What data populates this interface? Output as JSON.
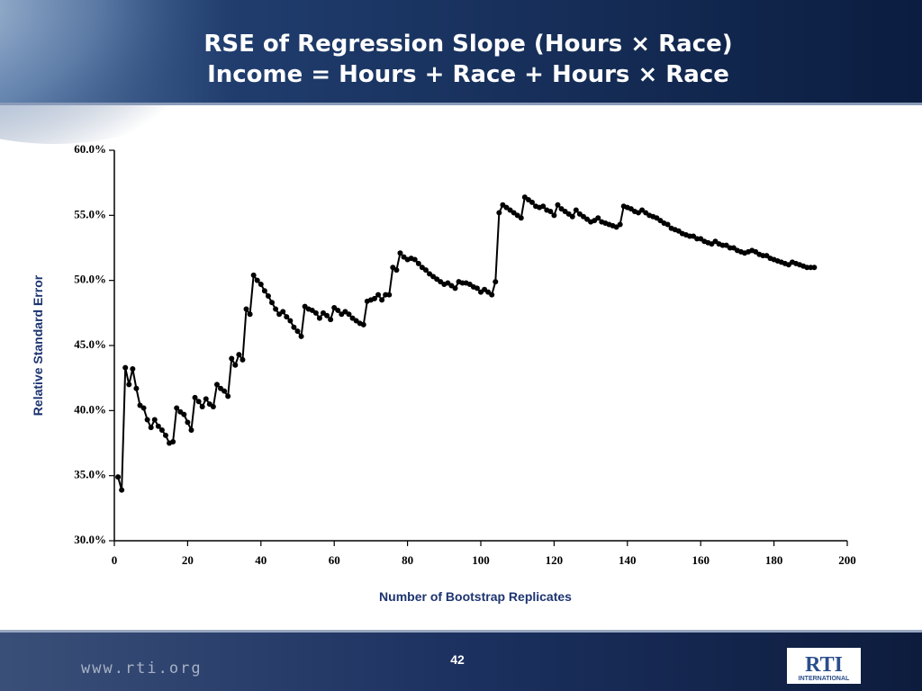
{
  "chart_data": {
    "type": "line",
    "title": "RSE of Regression Slope (Hours × Race)",
    "subtitle": "Income = Hours + Race + Hours × Race",
    "x_label": "Number of Bootstrap Replicates",
    "y_label": "Relative Standard Error",
    "color": "#000000",
    "x": [
      1,
      2,
      3,
      4,
      5,
      6,
      7,
      8,
      9,
      10,
      11,
      12,
      13,
      14,
      15,
      16,
      17,
      18,
      19,
      20,
      21,
      22,
      23,
      24,
      25,
      26,
      27,
      28,
      29,
      30,
      31,
      32,
      33,
      34,
      35,
      36,
      37,
      38,
      39,
      40,
      41,
      42,
      43,
      44,
      45,
      46,
      47,
      48,
      49,
      50,
      51,
      52,
      53,
      54,
      55,
      56,
      57,
      58,
      59,
      60,
      61,
      62,
      63,
      64,
      65,
      66,
      67,
      68,
      69,
      70,
      71,
      72,
      73,
      74,
      75,
      76,
      77,
      78,
      79,
      80,
      81,
      82,
      83,
      84,
      85,
      86,
      87,
      88,
      89,
      90,
      91,
      92,
      93,
      94,
      95,
      96,
      97,
      98,
      99,
      100,
      101,
      102,
      103,
      104,
      105,
      106,
      107,
      108,
      109,
      110,
      111,
      112,
      113,
      114,
      115,
      116,
      117,
      118,
      119,
      120,
      121,
      122,
      123,
      124,
      125,
      126,
      127,
      128,
      129,
      130,
      131,
      132,
      133,
      134,
      135,
      136,
      137,
      138,
      139,
      140,
      141,
      142,
      143,
      144,
      145,
      146,
      147,
      148,
      149,
      150,
      151,
      152,
      153,
      154,
      155,
      156,
      157,
      158,
      159,
      160,
      161,
      162,
      163,
      164,
      165,
      166,
      167,
      168,
      169,
      170,
      171,
      172,
      173,
      174,
      175,
      176,
      177,
      178,
      179,
      180,
      181,
      182,
      183,
      184,
      185,
      186,
      187,
      188,
      189,
      190,
      191
    ],
    "values": [
      34.9,
      33.9,
      43.3,
      42.0,
      43.2,
      41.7,
      40.4,
      40.2,
      39.3,
      38.7,
      39.3,
      38.8,
      38.5,
      38.1,
      37.5,
      37.6,
      40.2,
      39.9,
      39.7,
      39.1,
      38.5,
      41.0,
      40.7,
      40.3,
      40.9,
      40.5,
      40.3,
      42.0,
      41.7,
      41.5,
      41.1,
      44.0,
      43.5,
      44.3,
      43.9,
      47.8,
      47.4,
      50.4,
      50.0,
      49.7,
      49.2,
      48.8,
      48.3,
      47.8,
      47.4,
      47.6,
      47.2,
      46.9,
      46.4,
      46.1,
      45.7,
      48.0,
      47.8,
      47.7,
      47.5,
      47.1,
      47.5,
      47.3,
      47.0,
      47.9,
      47.7,
      47.4,
      47.6,
      47.4,
      47.1,
      46.9,
      46.7,
      46.6,
      48.4,
      48.5,
      48.6,
      48.9,
      48.5,
      48.9,
      48.9,
      51.0,
      50.8,
      52.1,
      51.8,
      51.6,
      51.7,
      51.6,
      51.3,
      51.0,
      50.8,
      50.5,
      50.3,
      50.1,
      49.9,
      49.7,
      49.8,
      49.6,
      49.4,
      49.9,
      49.8,
      49.8,
      49.7,
      49.5,
      49.4,
      49.1,
      49.3,
      49.1,
      48.9,
      49.9,
      55.2,
      55.8,
      55.6,
      55.4,
      55.2,
      55.0,
      54.8,
      56.4,
      56.2,
      56.0,
      55.7,
      55.6,
      55.7,
      55.4,
      55.3,
      55.0,
      55.8,
      55.5,
      55.3,
      55.1,
      54.9,
      55.4,
      55.1,
      54.9,
      54.7,
      54.5,
      54.6,
      54.8,
      54.5,
      54.4,
      54.3,
      54.2,
      54.1,
      54.3,
      55.7,
      55.6,
      55.5,
      55.3,
      55.2,
      55.4,
      55.2,
      55.0,
      54.9,
      54.8,
      54.6,
      54.4,
      54.3,
      54.0,
      53.9,
      53.8,
      53.6,
      53.5,
      53.4,
      53.4,
      53.2,
      53.2,
      53.0,
      52.9,
      52.8,
      53.0,
      52.8,
      52.7,
      52.7,
      52.5,
      52.5,
      52.3,
      52.2,
      52.1,
      52.2,
      52.3,
      52.2,
      52.0,
      51.9,
      51.9,
      51.7,
      51.6,
      51.5,
      51.4,
      51.3,
      51.2,
      51.4,
      51.3,
      51.2,
      51.1,
      51.0,
      51.0,
      51.0
    ],
    "xlim": [
      0,
      200
    ],
    "xticks": [
      0,
      20,
      40,
      60,
      80,
      100,
      120,
      140,
      160,
      180,
      200
    ],
    "ylim": [
      30,
      60
    ],
    "yticks": [
      {
        "value": 30,
        "label": "30.0%"
      },
      {
        "value": 35,
        "label": "35.0%"
      },
      {
        "value": 40,
        "label": "40.0%"
      },
      {
        "value": 45,
        "label": "45.0%"
      },
      {
        "value": 50,
        "label": "50.0%"
      },
      {
        "value": 55,
        "label": "55.0%"
      },
      {
        "value": 60,
        "label": "60.0%"
      }
    ],
    "grid": false
  },
  "slide": {
    "url": "www.rti.org",
    "page_number": "42",
    "logo": "RTI",
    "logo_subtext": "INTERNATIONAL"
  }
}
